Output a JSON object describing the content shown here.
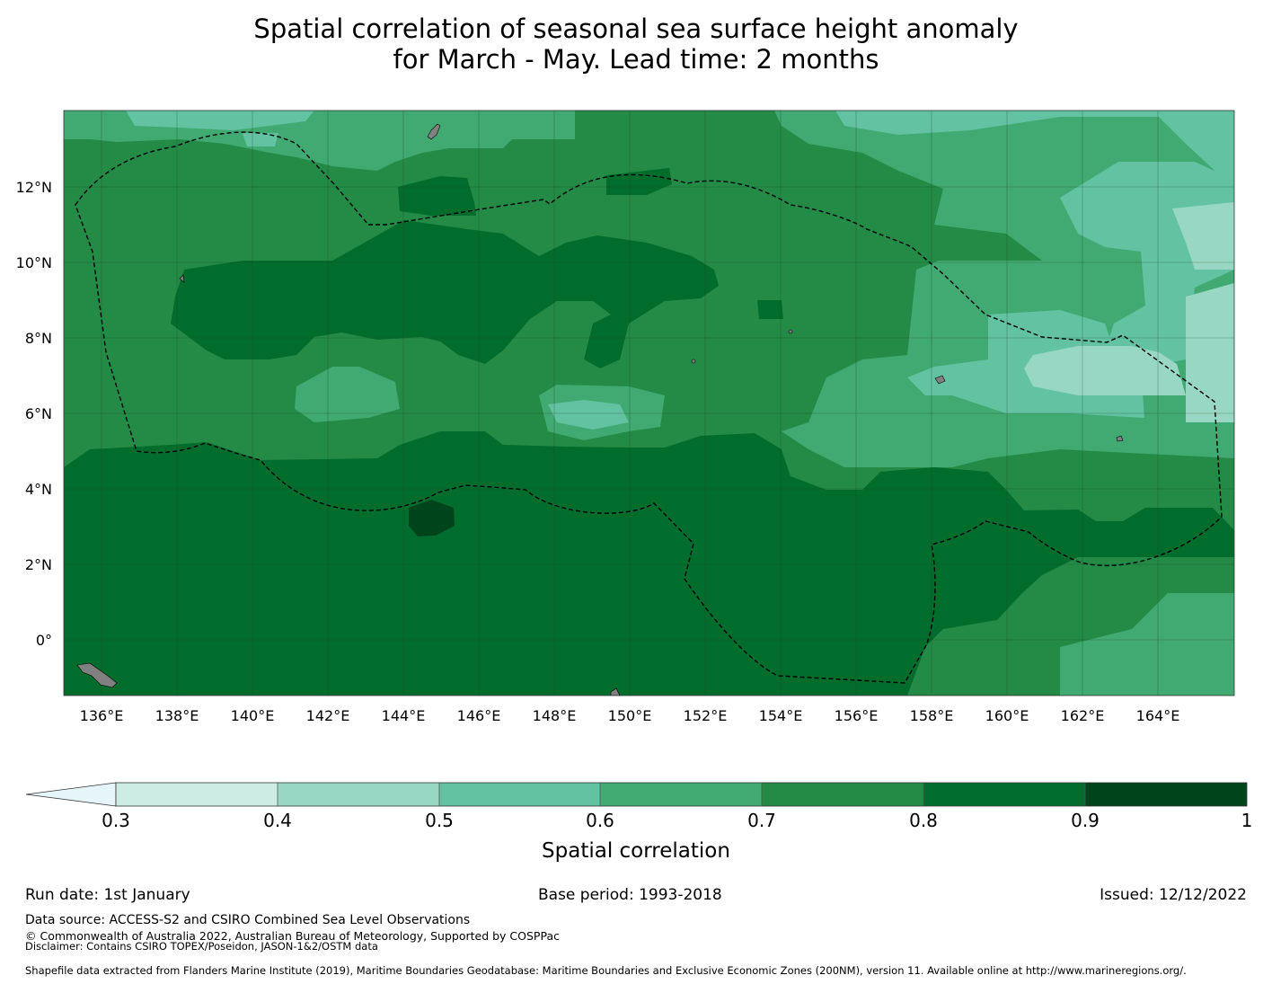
{
  "title": {
    "line1": "Spatial correlation of seasonal sea surface height anomaly",
    "line2": "for March - May. Lead time: 2 months"
  },
  "map": {
    "lat_labels": [
      "12°N",
      "10°N",
      "8°N",
      "6°N",
      "4°N",
      "2°N",
      "0°"
    ],
    "lon_labels": [
      "136°E",
      "138°E",
      "140°E",
      "142°E",
      "144°E",
      "146°E",
      "148°E",
      "150°E",
      "152°E",
      "154°E",
      "156°E",
      "158°E",
      "160°E",
      "162°E",
      "164°E"
    ],
    "colors": {
      "c03": "#cdece4",
      "c04": "#98d7c3",
      "c05": "#62c2a2",
      "c06": "#40aa72",
      "c07": "#238b45",
      "c08": "#016d2d",
      "c09": "#00441b",
      "land": "#808080",
      "gridline": "#1a3a22",
      "boundary": "#000000"
    }
  },
  "colorbar": {
    "ticks": [
      "0.3",
      "0.4",
      "0.5",
      "0.6",
      "0.7",
      "0.8",
      "0.9",
      "1"
    ],
    "label": "Spatial correlation",
    "extend_color": "#e5f5f9"
  },
  "footer": {
    "run_date": "Run date: 1st January",
    "base_period": "Base period: 1993-2018",
    "issued": "Issued: 12/12/2022",
    "data_source": "Data source: ACCESS-S2 and CSIRO Combined Sea Level Observations",
    "copyright": "© Commonwealth of Australia 2022, Australian Bureau of Meteorology, Supported by COSPPac",
    "disclaimer": "Disclaimer: Contains CSIRO TOPEX/Poseidon, JASON-1&2/OSTM data",
    "shapefile": "Shapefile data extracted from Flanders Marine Institute (2019), Maritime Boundaries Geodatabase: Maritime Boundaries and Exclusive Economic Zones (200NM), version 11. Available online at http://www.marineregions.org/."
  }
}
